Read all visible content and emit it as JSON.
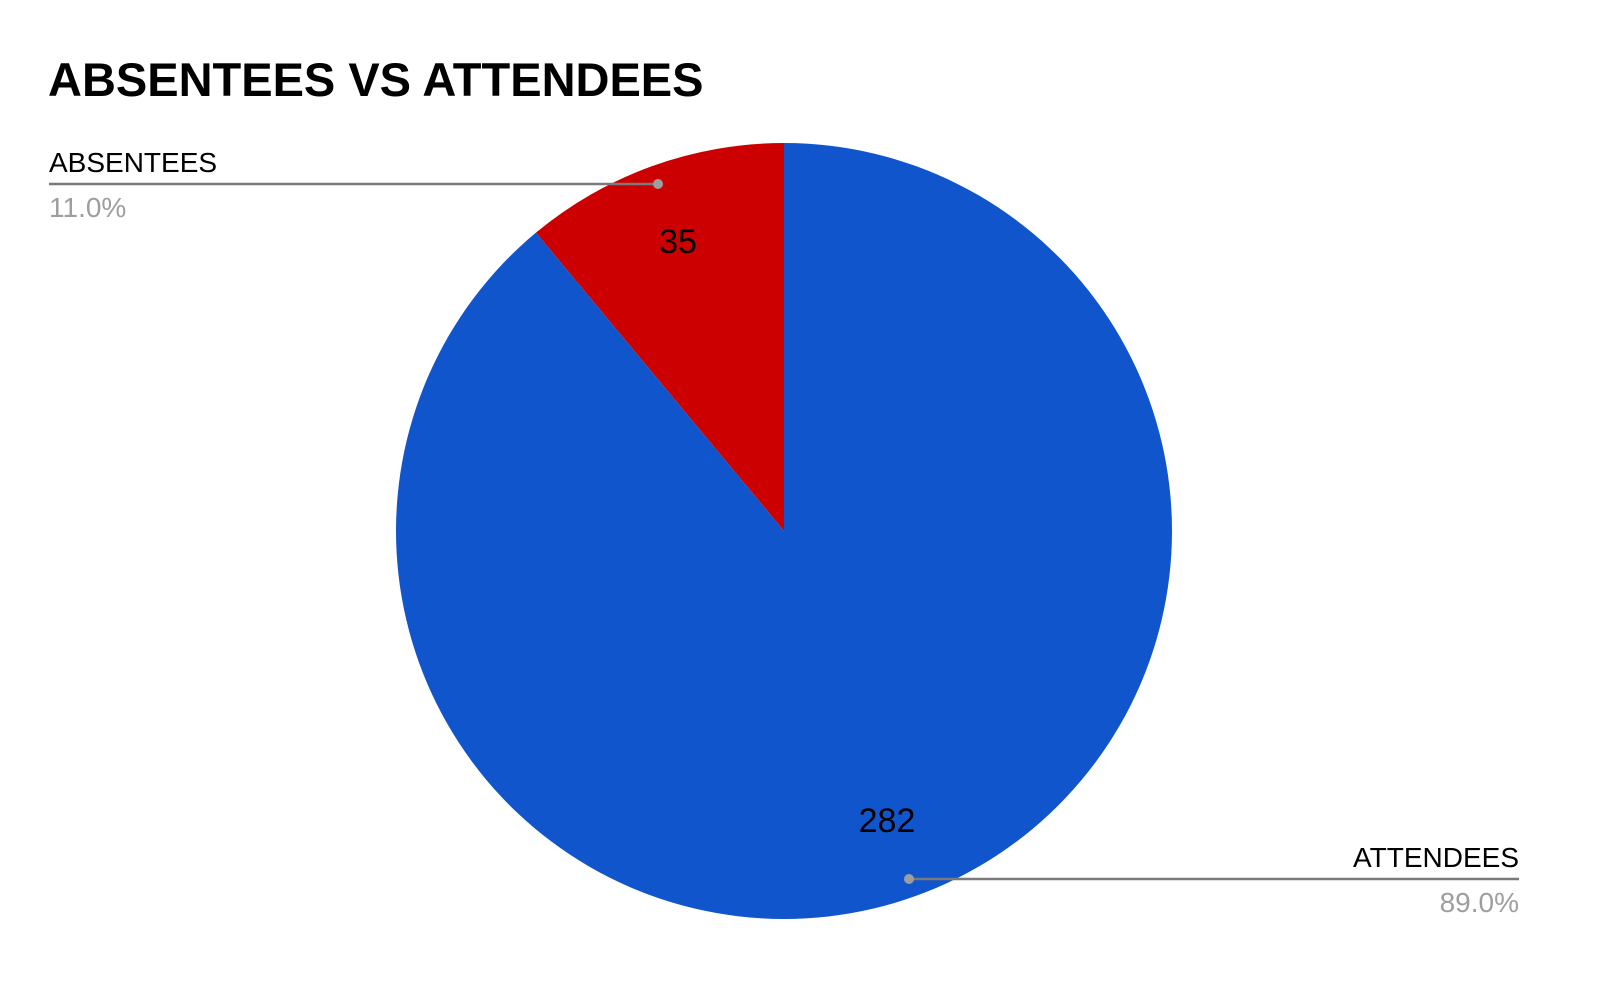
{
  "chart_data": {
    "type": "pie",
    "title": "ABSENTEES VS ATTENDEES",
    "slices": [
      {
        "label": "ABSENTEES",
        "value": 35,
        "percent_label": "11.0%",
        "color": "#cc0000"
      },
      {
        "label": "ATTENDEES",
        "value": 282,
        "percent_label": "89.0%",
        "color": "#1155cc"
      }
    ],
    "start_angle": "12 o'clock",
    "direction": "counterclockwise",
    "legend": "leader-line labels"
  }
}
